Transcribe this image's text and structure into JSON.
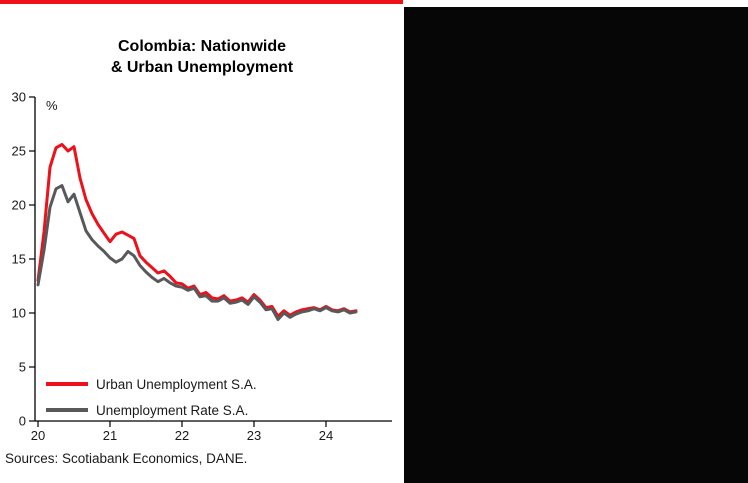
{
  "page": {
    "accent_red": "#EC111A",
    "panel_black": "#060606"
  },
  "chart": {
    "title_line1": "Colombia: Nationwide",
    "title_line2": "& Urban Unemployment",
    "y_unit_label": "%",
    "source_text": "Sources: Scotiabank Economics, DANE.",
    "legend": [
      {
        "label": "Urban Unemployment S.A.",
        "color": "#EC111A"
      },
      {
        "label": "Unemployment Rate S.A.",
        "color": "#58595B"
      }
    ]
  },
  "chart_data": {
    "type": "line",
    "title": "Colombia: Nationwide & Urban Unemployment",
    "xlabel": "",
    "ylabel": "%",
    "ylim": [
      0,
      30
    ],
    "y_ticks": [
      0,
      5,
      10,
      15,
      20,
      25,
      30
    ],
    "x_ticks": [
      {
        "value": 2020,
        "label": "20"
      },
      {
        "value": 2021,
        "label": "21"
      },
      {
        "value": 2022,
        "label": "22"
      },
      {
        "value": 2023,
        "label": "23"
      },
      {
        "value": 2024,
        "label": "24"
      }
    ],
    "x_start_year": 2020,
    "x_step_months": 1,
    "grid": false,
    "legend_position": "lower-left-inside",
    "series": [
      {
        "name": "Urban Unemployment S.A.",
        "color": "#EC111A",
        "values": [
          13.0,
          17.5,
          23.5,
          25.3,
          25.6,
          25.0,
          25.4,
          22.5,
          20.5,
          19.2,
          18.2,
          17.4,
          16.6,
          17.3,
          17.5,
          17.2,
          16.9,
          15.3,
          14.7,
          14.2,
          13.7,
          13.9,
          13.4,
          12.8,
          12.7,
          12.3,
          12.5,
          11.7,
          11.9,
          11.4,
          11.3,
          11.6,
          11.1,
          11.2,
          11.4,
          11.0,
          11.7,
          11.2,
          10.5,
          10.6,
          9.7,
          10.2,
          9.8,
          10.1,
          10.3,
          10.4,
          10.5,
          10.3,
          10.6,
          10.3,
          10.2,
          10.4,
          10.1,
          10.2
        ]
      },
      {
        "name": "Unemployment Rate S.A.",
        "color": "#58595B",
        "values": [
          12.6,
          15.8,
          19.8,
          21.5,
          21.8,
          20.3,
          21.0,
          19.3,
          17.6,
          16.8,
          16.2,
          15.7,
          15.1,
          14.7,
          15.0,
          15.7,
          15.3,
          14.4,
          13.8,
          13.3,
          12.9,
          13.2,
          12.8,
          12.5,
          12.4,
          12.1,
          12.3,
          11.5,
          11.6,
          11.1,
          11.1,
          11.4,
          10.9,
          11.0,
          11.2,
          10.8,
          11.5,
          11.0,
          10.3,
          10.4,
          9.4,
          10.0,
          9.6,
          9.9,
          10.1,
          10.2,
          10.4,
          10.2,
          10.5,
          10.2,
          10.1,
          10.3,
          10.0,
          10.1
        ]
      }
    ]
  }
}
